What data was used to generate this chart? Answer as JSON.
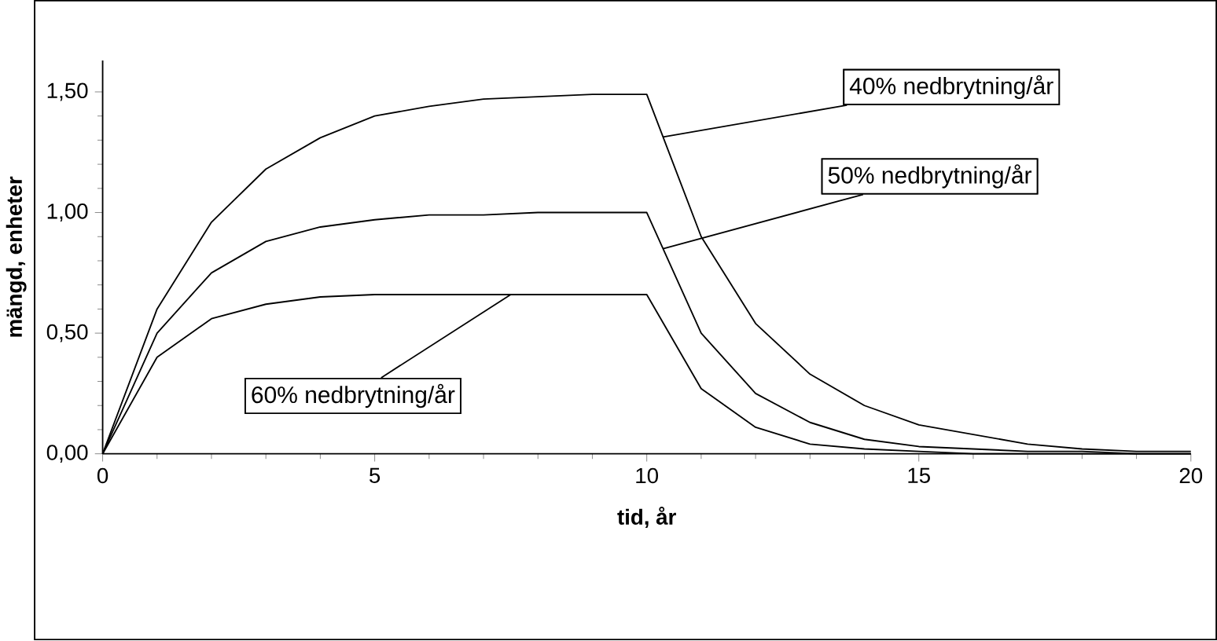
{
  "chart_data": {
    "type": "line",
    "xlabel": "tid, år",
    "ylabel": "mängd, enheter",
    "x": [
      0,
      1,
      2,
      3,
      4,
      5,
      6,
      7,
      8,
      9,
      10,
      11,
      12,
      13,
      14,
      15,
      16,
      17,
      18,
      19,
      20
    ],
    "series": [
      {
        "name": "40% nedbrytning/år",
        "color": "#000000",
        "values": [
          0,
          0.6,
          0.96,
          1.18,
          1.31,
          1.4,
          1.44,
          1.47,
          1.48,
          1.49,
          1.49,
          0.9,
          0.54,
          0.33,
          0.2,
          0.12,
          0.08,
          0.04,
          0.02,
          0.01,
          0.01
        ]
      },
      {
        "name": "50% nedbrytning/år",
        "color": "#000000",
        "values": [
          0,
          0.5,
          0.75,
          0.88,
          0.94,
          0.97,
          0.99,
          0.99,
          1.0,
          1.0,
          1.0,
          0.5,
          0.25,
          0.13,
          0.06,
          0.03,
          0.02,
          0.01,
          0.01,
          0.0,
          0.0
        ]
      },
      {
        "name": "60% nedbrytning/år",
        "color": "#000000",
        "values": [
          0,
          0.4,
          0.56,
          0.62,
          0.65,
          0.66,
          0.66,
          0.66,
          0.66,
          0.66,
          0.66,
          0.27,
          0.11,
          0.04,
          0.02,
          0.01,
          0.0,
          0.0,
          0.0,
          0.0,
          0.0
        ]
      }
    ],
    "xlim": [
      0,
      20
    ],
    "xticks": [
      0,
      5,
      10,
      15,
      20
    ],
    "ylim": [
      0,
      1.63
    ],
    "yticks": [
      {
        "value": 0,
        "label": "0,00"
      },
      {
        "value": 0.5,
        "label": "0,50"
      },
      {
        "value": 1.0,
        "label": "1,00"
      },
      {
        "value": 1.5,
        "label": "1,50"
      }
    ],
    "grid": false,
    "legend": false,
    "marker": "none",
    "line_style": "solid"
  }
}
